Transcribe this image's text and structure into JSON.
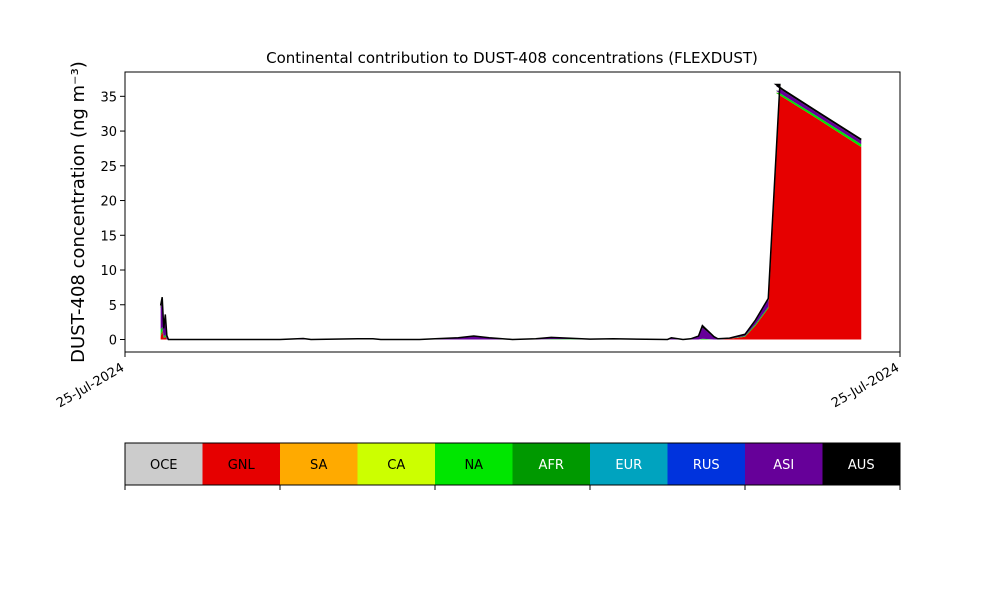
{
  "chart_data": {
    "type": "area",
    "title": "Continental contribution to DUST-408 concentrations (FLEXDUST)",
    "ylabel": "DUST-408 concentration (ng m⁻³)",
    "xlabel": "",
    "ylim": [
      -1.8,
      38.5
    ],
    "yticks": [
      0,
      5,
      10,
      15,
      20,
      25,
      30,
      35
    ],
    "xtick_labels": [
      "25-Jul-2024",
      "25-Jul-2024"
    ],
    "x_axis_scale": "time index (relative, 0 to 1 across plot)",
    "legend_placement": "bottom",
    "legend": [
      {
        "name": "OCE",
        "color": "#cccccc"
      },
      {
        "name": "GNL",
        "color": "#e60000"
      },
      {
        "name": "SA",
        "color": "#ffaa00"
      },
      {
        "name": "CA",
        "color": "#ccff00"
      },
      {
        "name": "NA",
        "color": "#00e600"
      },
      {
        "name": "AFR",
        "color": "#009900"
      },
      {
        "name": "EUR",
        "color": "#00a3bf"
      },
      {
        "name": "RUS",
        "color": "#0033dd"
      },
      {
        "name": "ASI",
        "color": "#660099"
      },
      {
        "name": "AUS",
        "color": "#000000"
      }
    ],
    "x": [
      0.046,
      0.048,
      0.05,
      0.052,
      0.054,
      0.056,
      0.058,
      0.06,
      0.1,
      0.2,
      0.23,
      0.24,
      0.3,
      0.32,
      0.33,
      0.38,
      0.4,
      0.43,
      0.45,
      0.47,
      0.5,
      0.53,
      0.55,
      0.6,
      0.63,
      0.7,
      0.705,
      0.72,
      0.73,
      0.74,
      0.745,
      0.76,
      0.765,
      0.78,
      0.8,
      0.8135,
      0.83,
      0.845,
      0.84,
      0.85,
      0.89,
      0.95
    ],
    "series": [
      {
        "name": "GNL",
        "values": [
          0.4,
          1.3,
          0.2,
          0.4,
          0.0,
          0,
          0,
          0,
          0,
          0,
          0,
          0,
          0,
          0,
          0,
          0,
          0,
          0,
          0,
          0,
          0,
          0,
          0,
          0,
          0,
          0,
          0,
          0,
          0,
          0,
          0,
          0,
          0,
          0.1,
          0.4,
          2.0,
          4.5,
          35.5,
          35.5,
          34.8,
          32.0,
          27.7
        ]
      },
      {
        "name": "NA",
        "values": [
          1.0,
          0.5,
          0.2,
          0.3,
          0.0,
          0,
          0,
          0,
          0,
          0,
          0,
          0,
          0.1,
          0.1,
          0,
          0,
          0,
          0,
          0,
          0,
          0,
          0,
          0.05,
          0.05,
          0.1,
          0,
          0,
          0,
          0,
          0,
          0.1,
          0,
          0,
          0,
          0.1,
          0.2,
          0.2,
          0.3,
          0.3,
          0.3,
          0.35,
          0.4
        ]
      },
      {
        "name": "ASI",
        "values": [
          3.0,
          3.5,
          1.0,
          2.5,
          0.5,
          0,
          0,
          0,
          0,
          0,
          0.1,
          0,
          0,
          0,
          0,
          0,
          0.1,
          0.2,
          0.4,
          0.2,
          0,
          0.1,
          0.2,
          0,
          0,
          0,
          0.2,
          0,
          0.1,
          0.4,
          1.6,
          0.3,
          0.1,
          0.1,
          0.2,
          0.5,
          1.0,
          0.7,
          0.7,
          0.6,
          0.5,
          0.5
        ]
      },
      {
        "name": "AUS",
        "values": [
          0.5,
          0.8,
          0.2,
          0.4,
          0.1,
          0,
          0,
          0,
          0,
          0,
          0.05,
          0,
          0,
          0,
          0,
          0,
          0,
          0.05,
          0.1,
          0.05,
          0,
          0,
          0.05,
          0,
          0,
          0,
          0.05,
          0,
          0,
          0.1,
          0.3,
          0.1,
          0,
          0,
          0.05,
          0.1,
          0.2,
          0.2,
          0.2,
          0.2,
          0.2,
          0.2
        ]
      }
    ]
  }
}
